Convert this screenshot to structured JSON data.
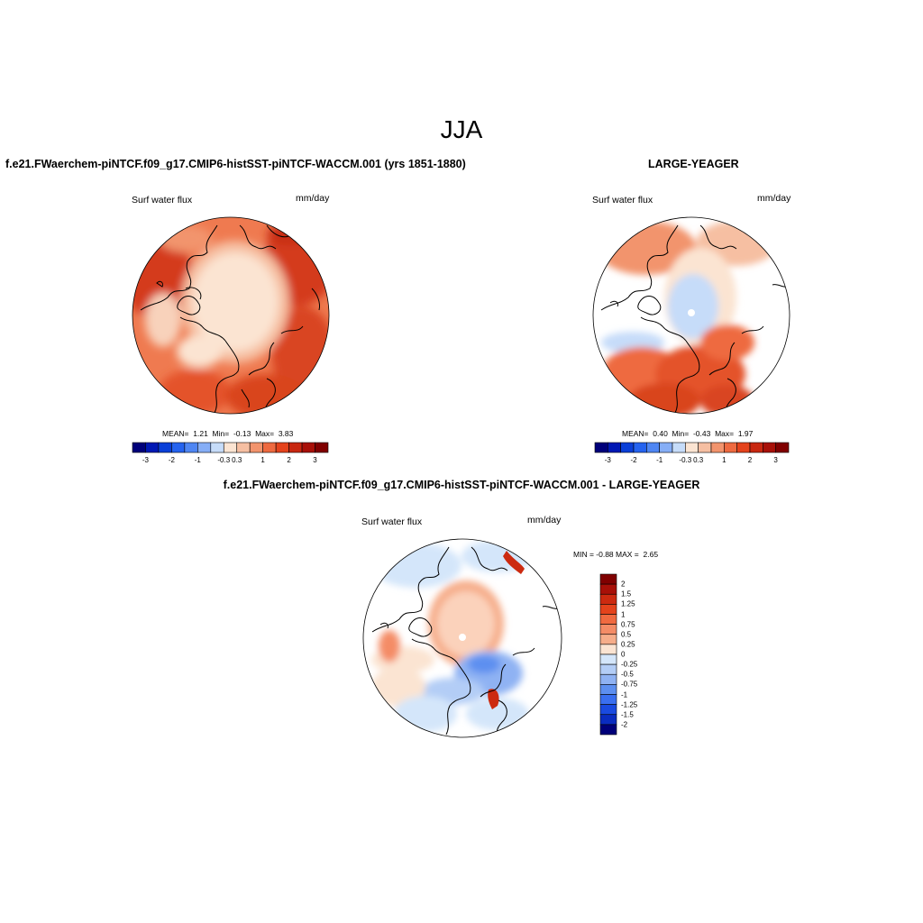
{
  "page": {
    "title": "JJA"
  },
  "panels": [
    {
      "id": "model",
      "title": "f.e21.FWaerchem-piNTCF.f09_g17.CMIP6-histSST-piNTCF-WACCM.001 (yrs 1851-1880)",
      "variable": "Surf water flux",
      "units": "mm/day",
      "stats": {
        "mean_label": "MEAN=",
        "mean": "1.21",
        "min_label": "Min=",
        "min": "-0.13",
        "max_label": "Max=",
        "max": "3.83"
      }
    },
    {
      "id": "obs",
      "title": "LARGE-YEAGER",
      "variable": "Surf water flux",
      "units": "mm/day",
      "stats": {
        "mean_label": "MEAN=",
        "mean": "0.40",
        "min_label": "Min=",
        "min": "-0.43",
        "max_label": "Max=",
        "max": "1.97"
      }
    },
    {
      "id": "diff",
      "title": "f.e21.FWaerchem-piNTCF.f09_g17.CMIP6-histSST-piNTCF-WACCM.001 - LARGE-YEAGER",
      "variable": "Surf water flux",
      "units": "mm/day",
      "stats": {
        "min_label": "MIN =",
        "min": "-0.88",
        "max_label": "MAX =",
        "max": "2.65"
      }
    }
  ],
  "colorbar_horizontal": {
    "colors": [
      "#00007a",
      "#0018b4",
      "#0a3fd8",
      "#2563ef",
      "#4f86f3",
      "#86aef6",
      "#c6dcf9",
      "#fbe4d2",
      "#f6bfa2",
      "#f2946d",
      "#ee6a40",
      "#e4431c",
      "#c82710",
      "#a81008",
      "#800000"
    ],
    "labels": [
      "-3",
      "-2",
      "-1",
      "-0.3",
      "0.3",
      "1",
      "2",
      "3"
    ]
  },
  "colorbar_vertical": {
    "colors": [
      "#800000",
      "#a81008",
      "#cc2a10",
      "#e4431c",
      "#f06a40",
      "#f48c66",
      "#f6ad8a",
      "#fbe4d2",
      "#d4e6fa",
      "#b3cdf6",
      "#8fb2f3",
      "#5d8ff0",
      "#3a6ff0",
      "#1a4ae0",
      "#0a2cc0",
      "#00007a"
    ],
    "labels": [
      "2",
      "1.5",
      "1.25",
      "1",
      "0.75",
      "0.5",
      "0.25",
      "0",
      "-0.25",
      "-0.5",
      "-0.75",
      "-1",
      "-1.25",
      "-1.5",
      "-2"
    ]
  }
}
